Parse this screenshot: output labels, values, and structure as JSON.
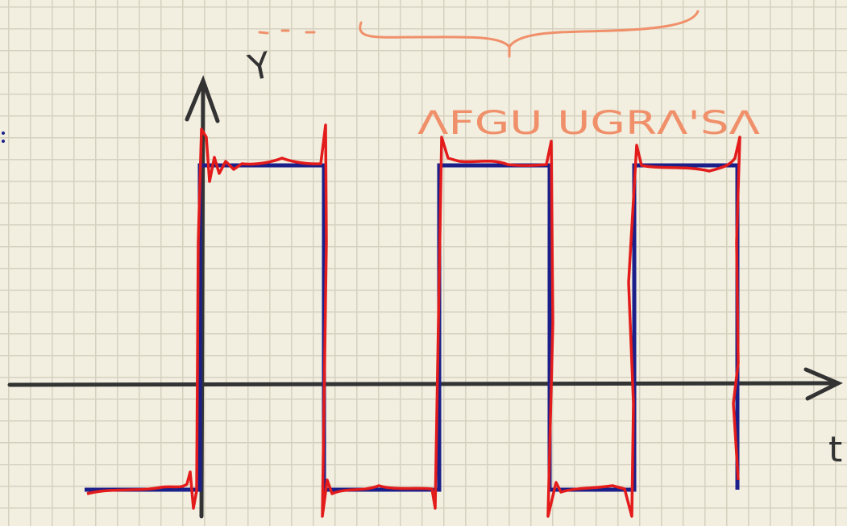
{
  "labels": {
    "y_axis": "Y",
    "x_axis": "t",
    "annotation": "ΛFGU UGRΛ'SΛ"
  }
}
